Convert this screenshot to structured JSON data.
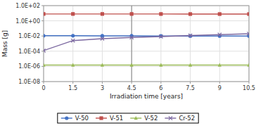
{
  "chart_data": {
    "type": "line",
    "xlabel": "Irradiation time [years]",
    "ylabel": "Mass [g]",
    "x": [
      0,
      1.5,
      3,
      4.5,
      6,
      7.5,
      9,
      10.5
    ],
    "series": [
      {
        "name": "V-50",
        "color": "#4472C4",
        "marker": "circle",
        "values": [
          0.011,
          0.011,
          0.0105,
          0.0105,
          0.01,
          0.01,
          0.01,
          0.01
        ]
      },
      {
        "name": "V-51",
        "color": "#C0504D",
        "marker": "square",
        "values": [
          8.0,
          8.0,
          8.0,
          8.0,
          7.9,
          7.8,
          7.8,
          7.8
        ]
      },
      {
        "name": "V-52",
        "color": "#9BBB59",
        "marker": "triangle",
        "values": [
          1.5e-06,
          1.5e-06,
          1.5e-06,
          1.5e-06,
          1.5e-06,
          1.5e-06,
          1.5e-06,
          1.5e-06
        ]
      },
      {
        "name": "Cr-52",
        "color": "#7B68A0",
        "marker": "x",
        "values": [
          0.00012,
          0.0025,
          0.0045,
          0.0065,
          0.0085,
          0.0115,
          0.015,
          0.02
        ]
      }
    ],
    "vlines": [
      4.5
    ],
    "xlim": [
      0,
      10.5
    ],
    "xticks": [
      0,
      1.5,
      3,
      4.5,
      6,
      7.5,
      9,
      10.5
    ],
    "ylim": [
      1e-08,
      100.0
    ],
    "yticks": [
      {
        "value": 1e-08,
        "label": "1.0E-08"
      },
      {
        "value": 1e-06,
        "label": "1.0E-06"
      },
      {
        "value": 0.0001,
        "label": "1.0E-04"
      },
      {
        "value": 0.01,
        "label": "1.0E-02"
      },
      {
        "value": 1.0,
        "label": "1.0E+00"
      },
      {
        "value": 100.0,
        "label": "1.0E+02"
      }
    ],
    "log": "y",
    "grid": true,
    "legend": "bottom"
  }
}
